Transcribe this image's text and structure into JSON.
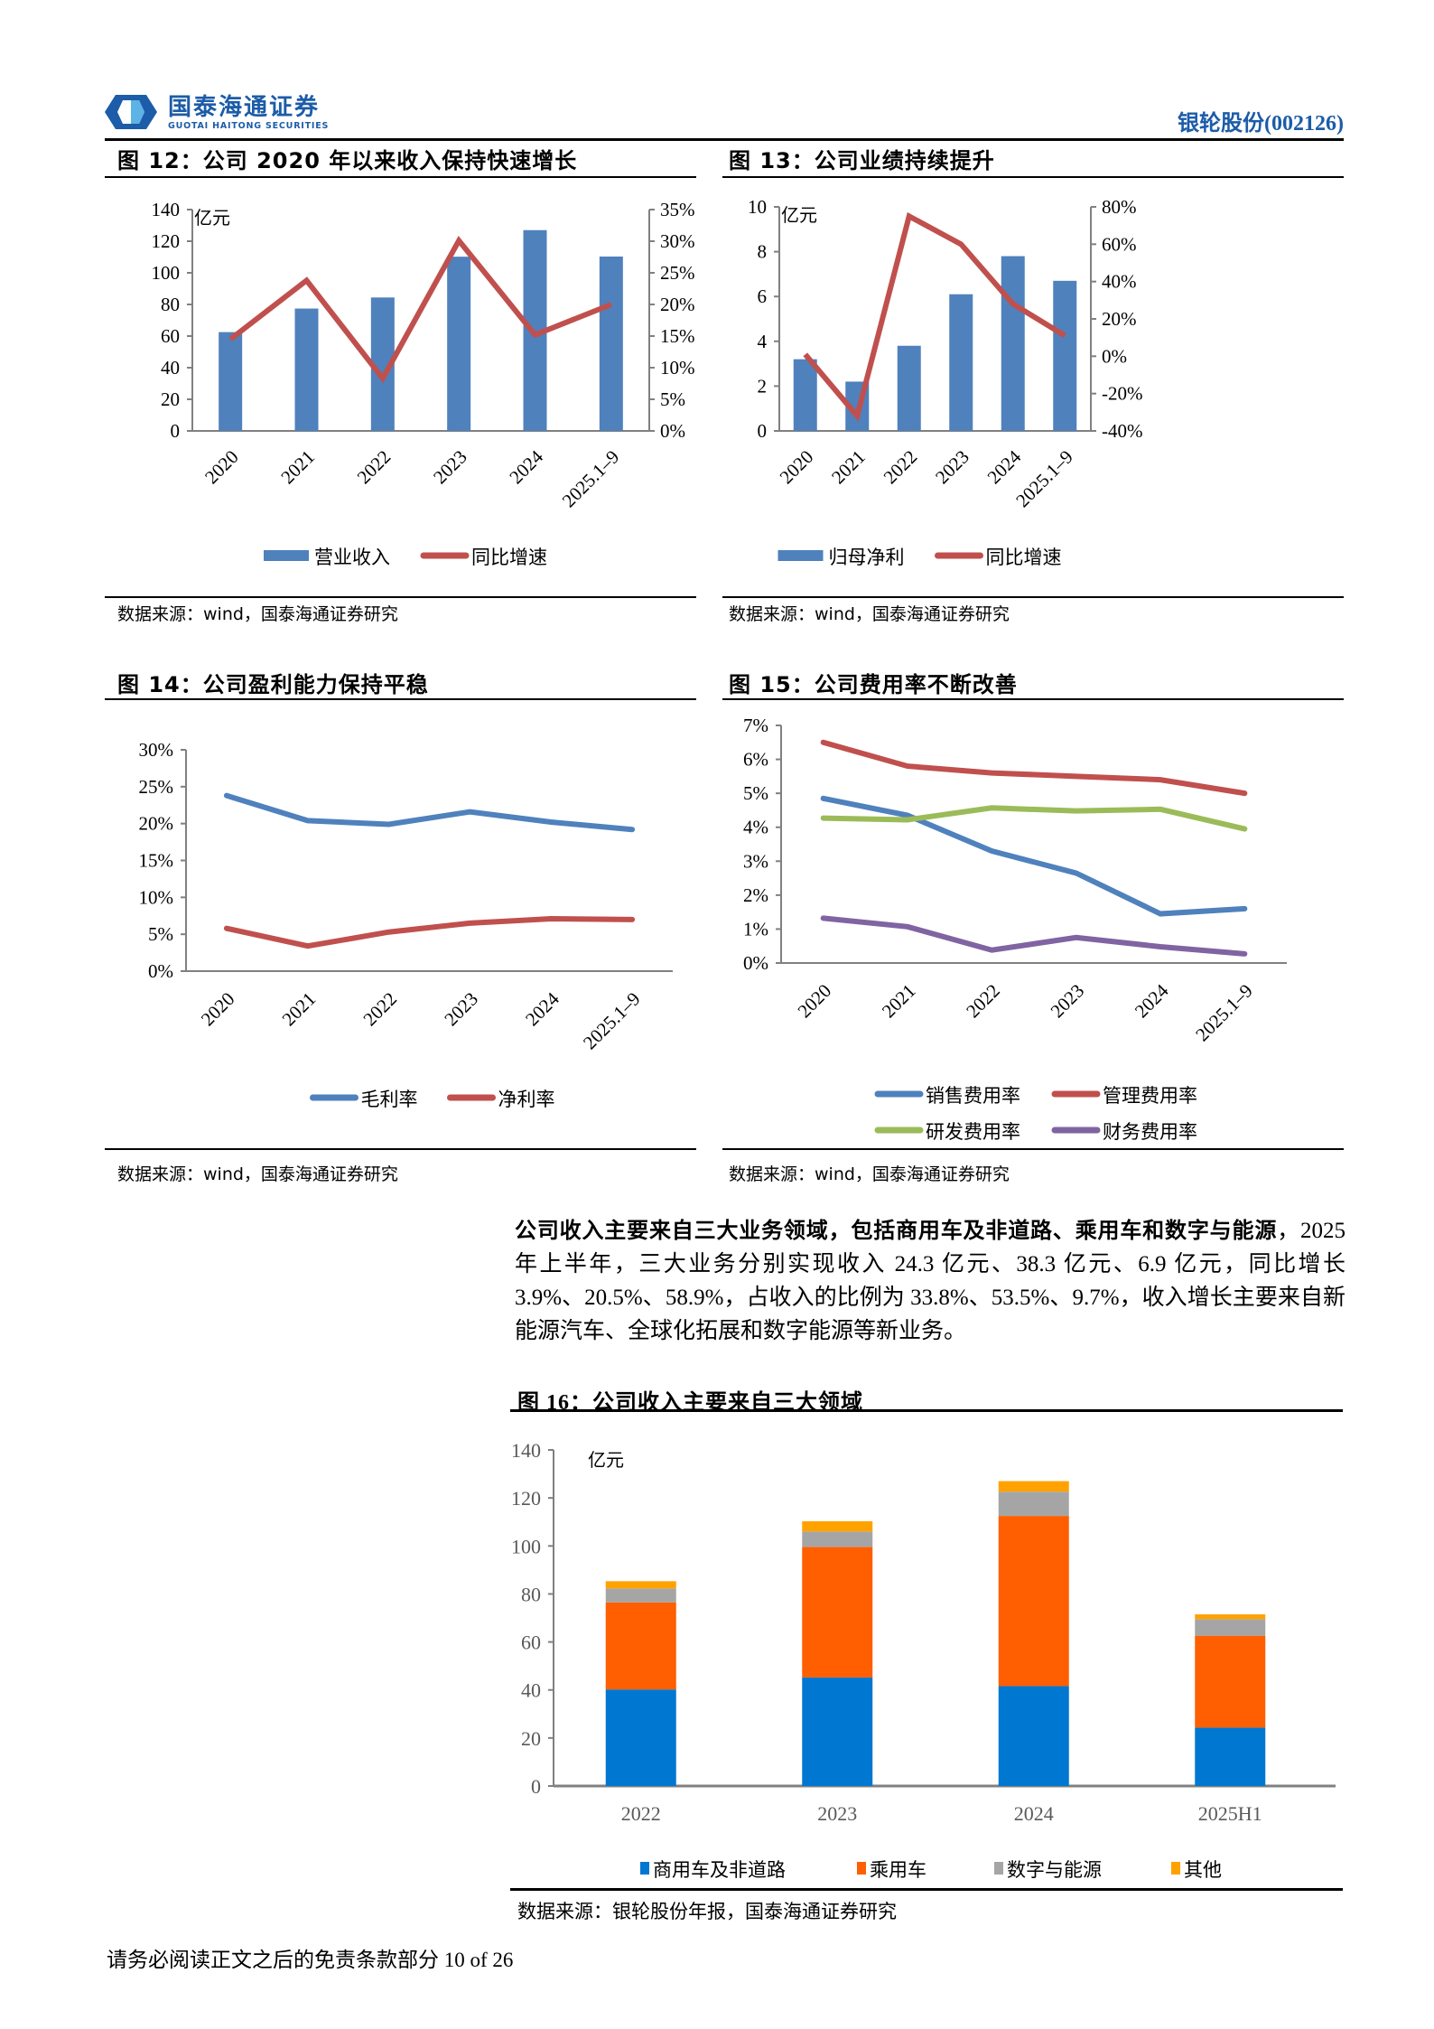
{
  "header": {
    "logo_cn": "国泰海通证券",
    "logo_en": "GUOTAI HAITONG SECURITIES",
    "stock_name": "银轮股份(002126)",
    "brand_color": "#1c5ca8"
  },
  "figures": {
    "fig12": {
      "title": "图 12：公司 2020 年以来收入保持快速增长",
      "unit": "亿元",
      "source": "数据来源：wind，国泰海通证券研究"
    },
    "fig13": {
      "title": "图 13：公司业绩持续提升",
      "unit": "亿元",
      "source": "数据来源：wind，国泰海通证券研究"
    },
    "fig14": {
      "title": "图 14：公司盈利能力保持平稳",
      "source": "数据来源：wind，国泰海通证券研究"
    },
    "fig15": {
      "title": "图 15：公司费用率不断改善",
      "source": "数据来源：wind，国泰海通证券研究"
    },
    "fig16": {
      "title": "图 16：公司收入主要来自三大领域",
      "unit": "亿元",
      "source": "数据来源：银轮股份年报，国泰海通证券研究"
    }
  },
  "paragraph": {
    "bold": "公司收入主要来自三大业务领域，包括商用车及非道路、乘用车和数字与能源",
    "rest": "，2025 年上半年，三大业务分别实现收入 24.3 亿元、38.3 亿元、6.9 亿元，同比增长 3.9%、20.5%、58.9%，占收入的比例为 33.8%、53.5%、9.7%，收入增长主要来自新能源汽车、全球化拓展和数字能源等新业务。"
  },
  "footer": {
    "text": "请务必阅读正文之后的免责条款部分 10 of 26"
  },
  "chart_data": [
    {
      "id": "fig12",
      "type": "bar+line",
      "title": "公司 2020 年以来收入保持快速增长",
      "categories": [
        "2020",
        "2021",
        "2022",
        "2023",
        "2024",
        "2025.1-9"
      ],
      "series": [
        {
          "name": "营业收入",
          "type": "bar",
          "axis": "left",
          "color": "#4f81bd",
          "values": [
            62.5,
            77.4,
            84.4,
            110.2,
            127.0,
            110.3
          ]
        },
        {
          "name": "同比增速",
          "type": "line",
          "axis": "right",
          "color": "#c0504d",
          "values": [
            14.5,
            23.8,
            8.3,
            30.1,
            15.2,
            20.0
          ]
        }
      ],
      "ylabel": "亿元",
      "y_left": {
        "min": 0,
        "max": 140,
        "ticks": [
          0,
          20,
          40,
          60,
          80,
          100,
          120,
          140
        ]
      },
      "y_right": {
        "min": 0,
        "max": 35,
        "ticks": [
          "0%",
          "5%",
          "10%",
          "15%",
          "20%",
          "25%",
          "30%",
          "35%"
        ]
      },
      "legend": [
        "营业收入",
        "同比增速"
      ],
      "legend_position": "bottom"
    },
    {
      "id": "fig13",
      "type": "bar+line",
      "title": "公司业绩持续提升",
      "categories": [
        "2020",
        "2021",
        "2022",
        "2023",
        "2024",
        "2025.1-9"
      ],
      "series": [
        {
          "name": "归母净利",
          "type": "bar",
          "axis": "left",
          "color": "#4f81bd",
          "values": [
            3.2,
            2.2,
            3.8,
            6.1,
            7.8,
            6.7
          ]
        },
        {
          "name": "同比增速",
          "type": "line",
          "axis": "right",
          "color": "#c0504d",
          "values": [
            1,
            -32,
            75,
            60,
            28,
            11
          ]
        }
      ],
      "ylabel": "亿元",
      "y_left": {
        "min": 0,
        "max": 10,
        "ticks": [
          0,
          2,
          4,
          6,
          8,
          10
        ]
      },
      "y_right": {
        "min": -40,
        "max": 80,
        "ticks": [
          "-40%",
          "-20%",
          "0%",
          "20%",
          "40%",
          "60%",
          "80%"
        ]
      },
      "legend": [
        "归母净利",
        "同比增速"
      ],
      "legend_position": "bottom"
    },
    {
      "id": "fig14",
      "type": "line",
      "title": "公司盈利能力保持平稳",
      "categories": [
        "2020",
        "2021",
        "2022",
        "2023",
        "2024",
        "2025.1-9"
      ],
      "series": [
        {
          "name": "毛利率",
          "color": "#4f81bd",
          "values": [
            23.8,
            20.4,
            19.9,
            21.6,
            20.2,
            19.2
          ]
        },
        {
          "name": "净利率",
          "color": "#c0504d",
          "values": [
            5.8,
            3.4,
            5.3,
            6.5,
            7.1,
            7.0
          ]
        }
      ],
      "y": {
        "min": 0,
        "max": 30,
        "ticks": [
          "0%",
          "5%",
          "10%",
          "15%",
          "20%",
          "25%",
          "30%"
        ]
      },
      "legend": [
        "毛利率",
        "净利率"
      ],
      "legend_position": "bottom"
    },
    {
      "id": "fig15",
      "type": "line",
      "title": "公司费用率不断改善",
      "categories": [
        "2020",
        "2021",
        "2022",
        "2023",
        "2024",
        "2025.1-9"
      ],
      "series": [
        {
          "name": "销售费用率",
          "color": "#4f81bd",
          "values": [
            4.85,
            4.35,
            3.3,
            2.65,
            1.45,
            1.6
          ]
        },
        {
          "name": "管理费用率",
          "color": "#c0504d",
          "values": [
            6.5,
            5.8,
            5.6,
            5.5,
            5.4,
            5.0
          ]
        },
        {
          "name": "研发费用率",
          "color": "#9bbb59",
          "values": [
            4.27,
            4.22,
            4.57,
            4.48,
            4.53,
            3.95
          ]
        },
        {
          "name": "财务费用率",
          "color": "#8064a2",
          "values": [
            1.32,
            1.07,
            0.38,
            0.75,
            0.48,
            0.27
          ]
        }
      ],
      "y": {
        "min": 0,
        "max": 7,
        "ticks": [
          "0%",
          "1%",
          "2%",
          "3%",
          "4%",
          "5%",
          "6%",
          "7%"
        ]
      },
      "legend": [
        "销售费用率",
        "管理费用率",
        "研发费用率",
        "财务费用率"
      ],
      "legend_position": "bottom"
    },
    {
      "id": "fig16",
      "type": "stacked_bar",
      "title": "公司收入主要来自三大领域",
      "categories": [
        "2022",
        "2023",
        "2024",
        "2025H1"
      ],
      "series": [
        {
          "name": "商用车及非道路",
          "color": "#0077d0",
          "values": [
            40.2,
            45.2,
            41.6,
            24.3
          ]
        },
        {
          "name": "乘用车",
          "color": "#ff5f00",
          "values": [
            36.3,
            54.4,
            70.9,
            38.3
          ]
        },
        {
          "name": "数字与能源",
          "color": "#a5a5a5",
          "values": [
            5.8,
            6.4,
            10.1,
            6.9
          ]
        },
        {
          "name": "其他",
          "color": "#ffa200",
          "values": [
            3.0,
            4.3,
            4.4,
            2.0
          ]
        }
      ],
      "ylabel": "亿元",
      "y": {
        "min": 0,
        "max": 140,
        "ticks": [
          0,
          20,
          40,
          60,
          80,
          100,
          120,
          140
        ]
      },
      "legend": [
        "商用车及非道路",
        "乘用车",
        "数字与能源",
        "其他"
      ],
      "legend_position": "bottom"
    }
  ]
}
